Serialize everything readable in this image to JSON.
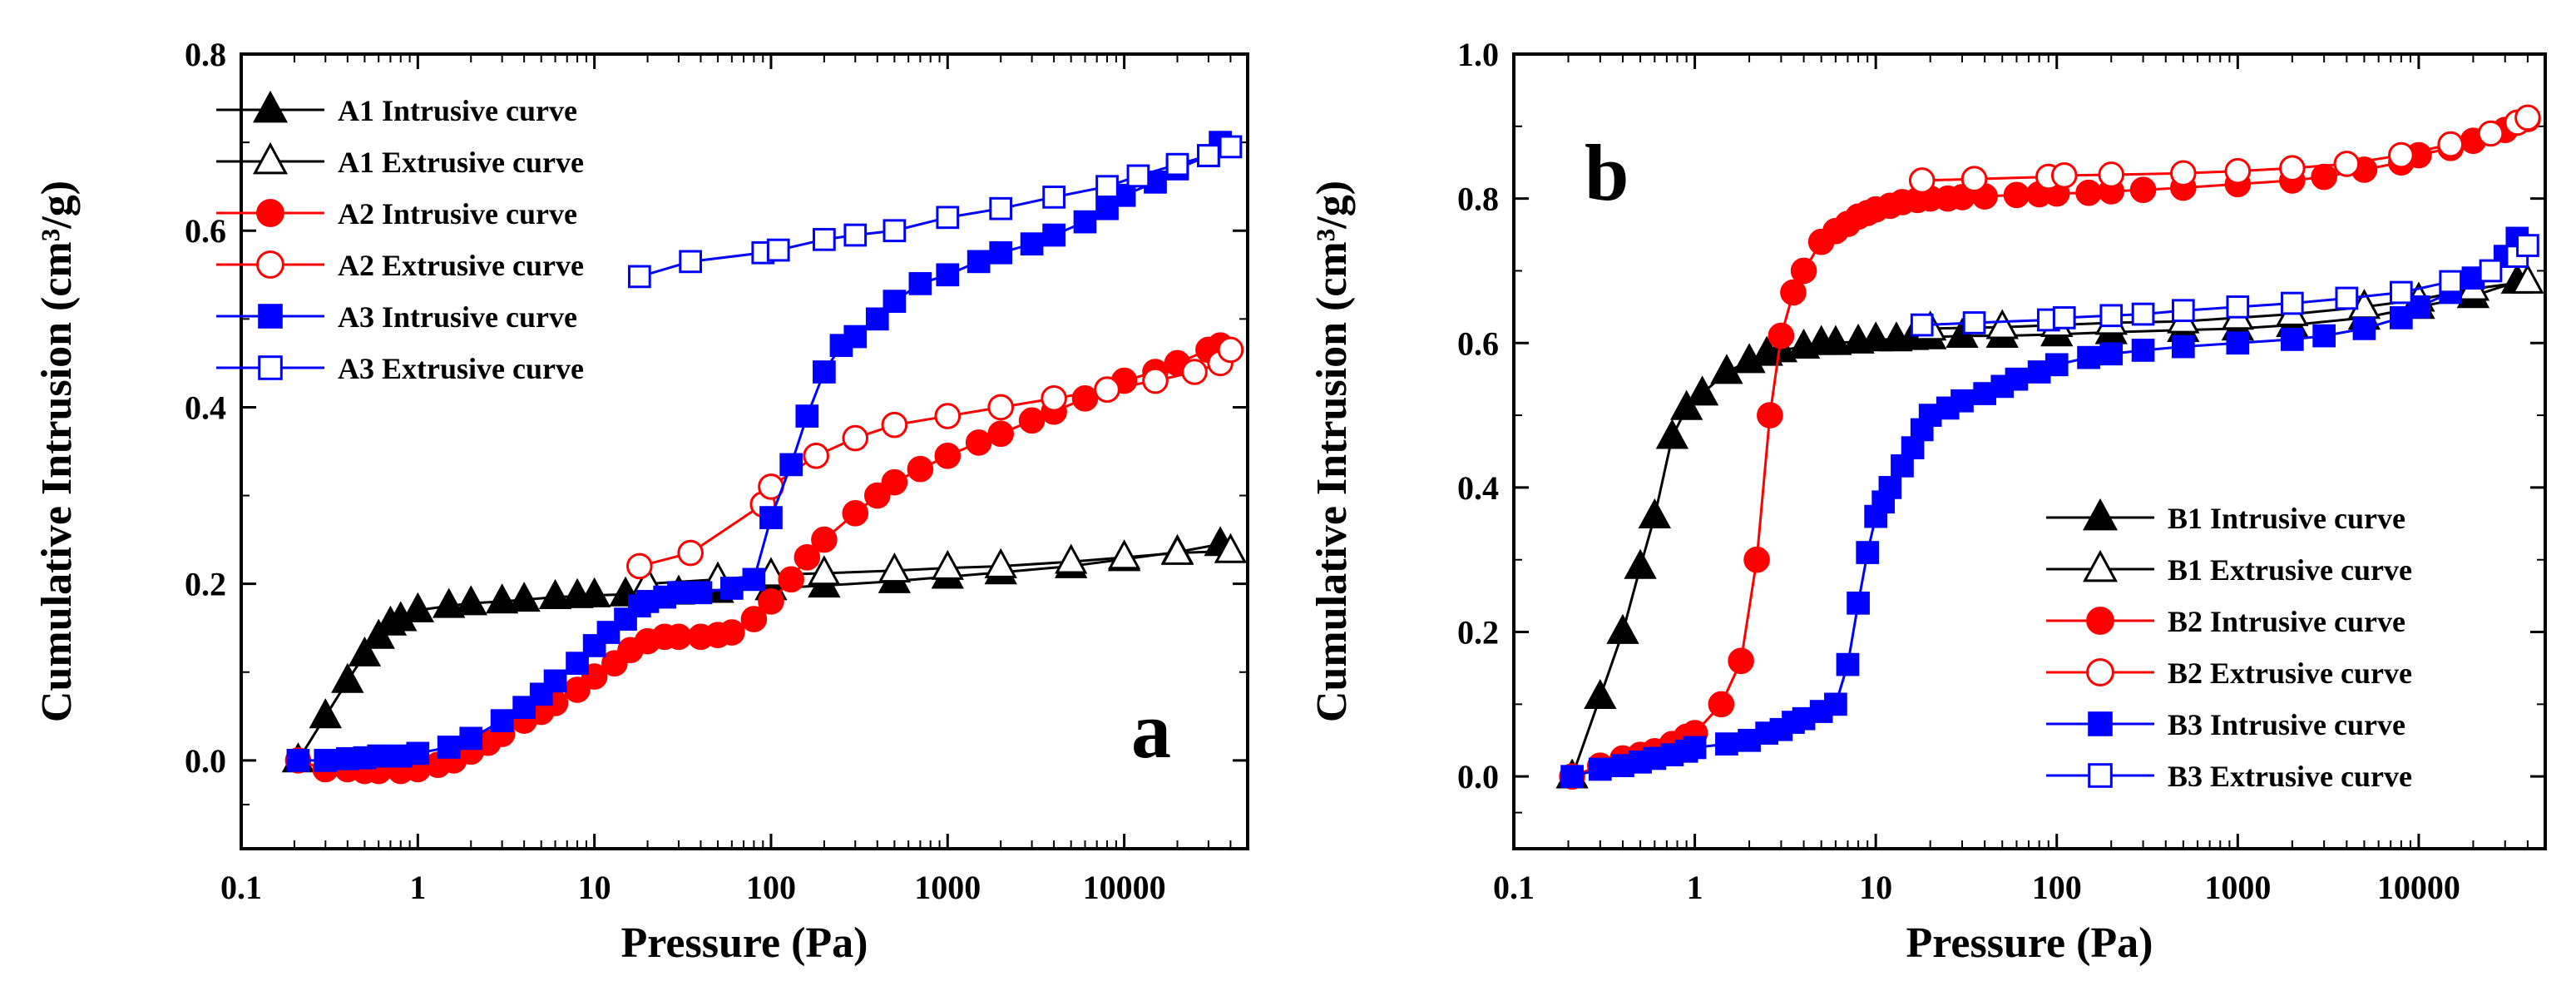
{
  "chart_data": [
    {
      "type": "line",
      "panel_label": "a",
      "xlabel": "Pressure (Pa)",
      "ylabel": "Cumulative Intrusion (cm³/g)",
      "xscale": "log",
      "xlim": [
        0.1,
        50000
      ],
      "ylim": [
        -0.1,
        0.8
      ],
      "xticks": [
        0.1,
        1,
        10,
        100,
        1000,
        10000
      ],
      "xtick_labels": [
        "0.1",
        "1",
        "10",
        "100",
        "1000",
        "10000"
      ],
      "yticks": [
        0.0,
        0.2,
        0.4,
        0.6,
        0.8
      ],
      "ytick_labels": [
        "0.0",
        "0.2",
        "0.4",
        "0.6",
        "0.8"
      ],
      "legend_position": "top-left",
      "series": [
        {
          "name": "A1 Intrusive curve",
          "color": "#000000",
          "marker": "triangle",
          "filled": true,
          "x": [
            0.21,
            0.3,
            0.4,
            0.5,
            0.6,
            0.7,
            0.8,
            1.0,
            1.5,
            2,
            3,
            4,
            6,
            8,
            10,
            15,
            20,
            30,
            50,
            100,
            200,
            500,
            1000,
            2000,
            5000,
            10000,
            20000,
            35000
          ],
          "y": [
            0.0,
            0.05,
            0.09,
            0.12,
            0.14,
            0.155,
            0.16,
            0.17,
            0.175,
            0.178,
            0.18,
            0.182,
            0.185,
            0.186,
            0.187,
            0.188,
            0.189,
            0.19,
            0.192,
            0.195,
            0.198,
            0.203,
            0.208,
            0.213,
            0.22,
            0.228,
            0.236,
            0.245
          ]
        },
        {
          "name": "A1 Extrusive curve",
          "color": "#000000",
          "marker": "triangle",
          "filled": false,
          "x": [
            20,
            50,
            100,
            200,
            500,
            1000,
            2000,
            5000,
            10000,
            20000,
            40000
          ],
          "y": [
            0.2,
            0.205,
            0.21,
            0.212,
            0.215,
            0.218,
            0.22,
            0.225,
            0.23,
            0.235,
            0.237
          ]
        },
        {
          "name": "A2 Intrusive curve",
          "color": "#ff0000",
          "marker": "circle",
          "filled": true,
          "x": [
            0.21,
            0.3,
            0.4,
            0.5,
            0.6,
            0.8,
            1.0,
            1.3,
            1.6,
            2,
            2.5,
            3,
            4,
            5,
            6,
            8,
            10,
            13,
            16,
            20,
            25,
            30,
            40,
            50,
            60,
            80,
            100,
            130,
            160,
            200,
            300,
            400,
            500,
            700,
            1000,
            1500,
            2000,
            3000,
            4000,
            6000,
            8000,
            10000,
            15000,
            20000,
            30000,
            35000
          ],
          "y": [
            0.0,
            -0.01,
            -0.01,
            -0.012,
            -0.012,
            -0.012,
            -0.01,
            -0.005,
            0.0,
            0.01,
            0.02,
            0.03,
            0.045,
            0.055,
            0.065,
            0.08,
            0.095,
            0.11,
            0.125,
            0.135,
            0.14,
            0.14,
            0.14,
            0.142,
            0.145,
            0.16,
            0.18,
            0.205,
            0.23,
            0.25,
            0.28,
            0.3,
            0.315,
            0.33,
            0.345,
            0.36,
            0.37,
            0.385,
            0.395,
            0.41,
            0.42,
            0.43,
            0.44,
            0.45,
            0.465,
            0.47
          ]
        },
        {
          "name": "A2 Extrusive curve",
          "color": "#ff0000",
          "marker": "circle",
          "filled": false,
          "x": [
            18,
            35,
            90,
            100,
            180,
            300,
            500,
            1000,
            2000,
            4000,
            8000,
            15000,
            25000,
            35000,
            40000
          ],
          "y": [
            0.22,
            0.235,
            0.29,
            0.31,
            0.345,
            0.365,
            0.38,
            0.39,
            0.4,
            0.41,
            0.42,
            0.43,
            0.44,
            0.45,
            0.465
          ]
        },
        {
          "name": "A3 Intrusive curve",
          "color": "#0000ff",
          "marker": "square",
          "filled": true,
          "x": [
            0.21,
            0.3,
            0.4,
            0.5,
            0.6,
            0.8,
            1.0,
            1.5,
            2,
            3,
            4,
            5,
            6,
            8,
            10,
            12,
            15,
            18,
            20,
            25,
            30,
            40,
            60,
            80,
            100,
            130,
            160,
            200,
            250,
            300,
            400,
            500,
            700,
            1000,
            1500,
            2000,
            3000,
            4000,
            6000,
            8000,
            10000,
            15000,
            20000,
            30000,
            35000
          ],
          "y": [
            0.0,
            0.0,
            0.002,
            0.003,
            0.005,
            0.005,
            0.008,
            0.015,
            0.025,
            0.045,
            0.06,
            0.075,
            0.09,
            0.11,
            0.13,
            0.145,
            0.16,
            0.175,
            0.18,
            0.185,
            0.19,
            0.19,
            0.195,
            0.205,
            0.275,
            0.335,
            0.39,
            0.44,
            0.47,
            0.48,
            0.5,
            0.52,
            0.54,
            0.55,
            0.565,
            0.575,
            0.585,
            0.595,
            0.61,
            0.625,
            0.64,
            0.655,
            0.67,
            0.685,
            0.7
          ]
        },
        {
          "name": "A3 Extrusive curve",
          "color": "#0000ff",
          "marker": "square",
          "filled": false,
          "x": [
            18,
            35,
            90,
            110,
            200,
            300,
            500,
            1000,
            2000,
            4000,
            8000,
            12000,
            20000,
            30000,
            40000
          ],
          "y": [
            0.548,
            0.565,
            0.575,
            0.578,
            0.59,
            0.595,
            0.6,
            0.615,
            0.625,
            0.638,
            0.65,
            0.662,
            0.675,
            0.685,
            0.695
          ]
        }
      ]
    },
    {
      "type": "line",
      "panel_label": "b",
      "xlabel": "Pressure (Pa)",
      "ylabel": "Cumulative Intrusion (cm³/g)",
      "xscale": "log",
      "xlim": [
        0.1,
        50000
      ],
      "ylim": [
        -0.1,
        1.0
      ],
      "xticks": [
        0.1,
        1,
        10,
        100,
        1000,
        10000
      ],
      "xtick_labels": [
        "0.1",
        "1",
        "10",
        "100",
        "1000",
        "10000"
      ],
      "yticks": [
        0.0,
        0.2,
        0.4,
        0.6,
        0.8,
        1.0
      ],
      "ytick_labels": [
        "0.0",
        "0.2",
        "0.4",
        "0.6",
        "0.8",
        "1.0"
      ],
      "legend_position": "bottom-right",
      "series": [
        {
          "name": "B1 Intrusive curve",
          "color": "#000000",
          "marker": "triangle",
          "filled": true,
          "x": [
            0.21,
            0.3,
            0.4,
            0.5,
            0.6,
            0.75,
            0.9,
            1.1,
            1.5,
            2,
            2.5,
            3,
            4,
            5,
            6,
            8,
            10,
            13,
            16,
            20,
            30,
            50,
            100,
            200,
            500,
            1000,
            2000,
            5000,
            10000,
            20000,
            35000
          ],
          "y": [
            0.0,
            0.11,
            0.2,
            0.29,
            0.36,
            0.47,
            0.51,
            0.53,
            0.56,
            0.575,
            0.585,
            0.59,
            0.595,
            0.6,
            0.6,
            0.602,
            0.605,
            0.605,
            0.607,
            0.608,
            0.61,
            0.61,
            0.612,
            0.615,
            0.618,
            0.62,
            0.625,
            0.635,
            0.65,
            0.665,
            0.685
          ]
        },
        {
          "name": "B1 Extrusive curve",
          "color": "#000000",
          "marker": "triangle",
          "filled": false,
          "x": [
            20,
            50,
            100,
            200,
            500,
            1000,
            2000,
            5000,
            10000,
            20000,
            40000
          ],
          "y": [
            0.62,
            0.622,
            0.625,
            0.628,
            0.63,
            0.635,
            0.64,
            0.65,
            0.66,
            0.675,
            0.685
          ]
        },
        {
          "name": "B2 Intrusive curve",
          "color": "#ff0000",
          "marker": "circle",
          "filled": true,
          "x": [
            0.21,
            0.3,
            0.4,
            0.5,
            0.6,
            0.75,
            0.9,
            1.0,
            1.4,
            1.8,
            2.2,
            2.6,
            3,
            3.5,
            4,
            5,
            6,
            7,
            8,
            9,
            10,
            12,
            14,
            17,
            20,
            25,
            30,
            40,
            60,
            80,
            100,
            150,
            200,
            300,
            500,
            1000,
            2000,
            3000,
            5000,
            8000,
            10000,
            15000,
            20000,
            30000,
            40000
          ],
          "y": [
            0.0,
            0.015,
            0.025,
            0.03,
            0.035,
            0.045,
            0.055,
            0.06,
            0.1,
            0.16,
            0.3,
            0.5,
            0.61,
            0.67,
            0.7,
            0.74,
            0.755,
            0.765,
            0.775,
            0.78,
            0.785,
            0.79,
            0.795,
            0.798,
            0.8,
            0.8,
            0.802,
            0.803,
            0.805,
            0.806,
            0.807,
            0.808,
            0.81,
            0.812,
            0.815,
            0.82,
            0.825,
            0.83,
            0.84,
            0.85,
            0.86,
            0.87,
            0.88,
            0.895,
            0.91
          ]
        },
        {
          "name": "B2 Extrusive curve",
          "color": "#ff0000",
          "marker": "circle",
          "filled": false,
          "x": [
            18,
            35,
            90,
            110,
            200,
            500,
            1000,
            2000,
            4000,
            8000,
            15000,
            25000,
            35000,
            40000
          ],
          "y": [
            0.825,
            0.827,
            0.83,
            0.832,
            0.833,
            0.835,
            0.838,
            0.842,
            0.848,
            0.86,
            0.875,
            0.89,
            0.905,
            0.912
          ]
        },
        {
          "name": "B3 Intrusive curve",
          "color": "#0000ff",
          "marker": "square",
          "filled": true,
          "x": [
            0.21,
            0.3,
            0.4,
            0.5,
            0.6,
            0.75,
            0.9,
            1.0,
            1.5,
            2,
            2.5,
            3,
            3.5,
            4,
            5,
            6,
            7,
            8,
            9,
            10,
            11,
            12,
            14,
            16,
            18,
            20,
            25,
            30,
            40,
            50,
            60,
            80,
            100,
            150,
            200,
            300,
            500,
            1000,
            2000,
            3000,
            5000,
            8000,
            10000,
            15000,
            20000,
            30000,
            35000
          ],
          "y": [
            0.0,
            0.01,
            0.015,
            0.02,
            0.025,
            0.03,
            0.035,
            0.04,
            0.045,
            0.05,
            0.06,
            0.065,
            0.075,
            0.08,
            0.09,
            0.1,
            0.155,
            0.24,
            0.31,
            0.36,
            0.38,
            0.4,
            0.43,
            0.455,
            0.48,
            0.5,
            0.51,
            0.52,
            0.53,
            0.54,
            0.55,
            0.56,
            0.57,
            0.58,
            0.585,
            0.59,
            0.595,
            0.6,
            0.605,
            0.61,
            0.62,
            0.635,
            0.65,
            0.67,
            0.69,
            0.72,
            0.745
          ]
        },
        {
          "name": "B3 Extrusive curve",
          "color": "#0000ff",
          "marker": "square",
          "filled": false,
          "x": [
            18,
            35,
            90,
            110,
            200,
            300,
            500,
            1000,
            2000,
            4000,
            8000,
            15000,
            25000,
            35000,
            40000
          ],
          "y": [
            0.625,
            0.628,
            0.632,
            0.635,
            0.638,
            0.64,
            0.645,
            0.65,
            0.655,
            0.662,
            0.67,
            0.685,
            0.7,
            0.72,
            0.735
          ]
        }
      ]
    }
  ]
}
